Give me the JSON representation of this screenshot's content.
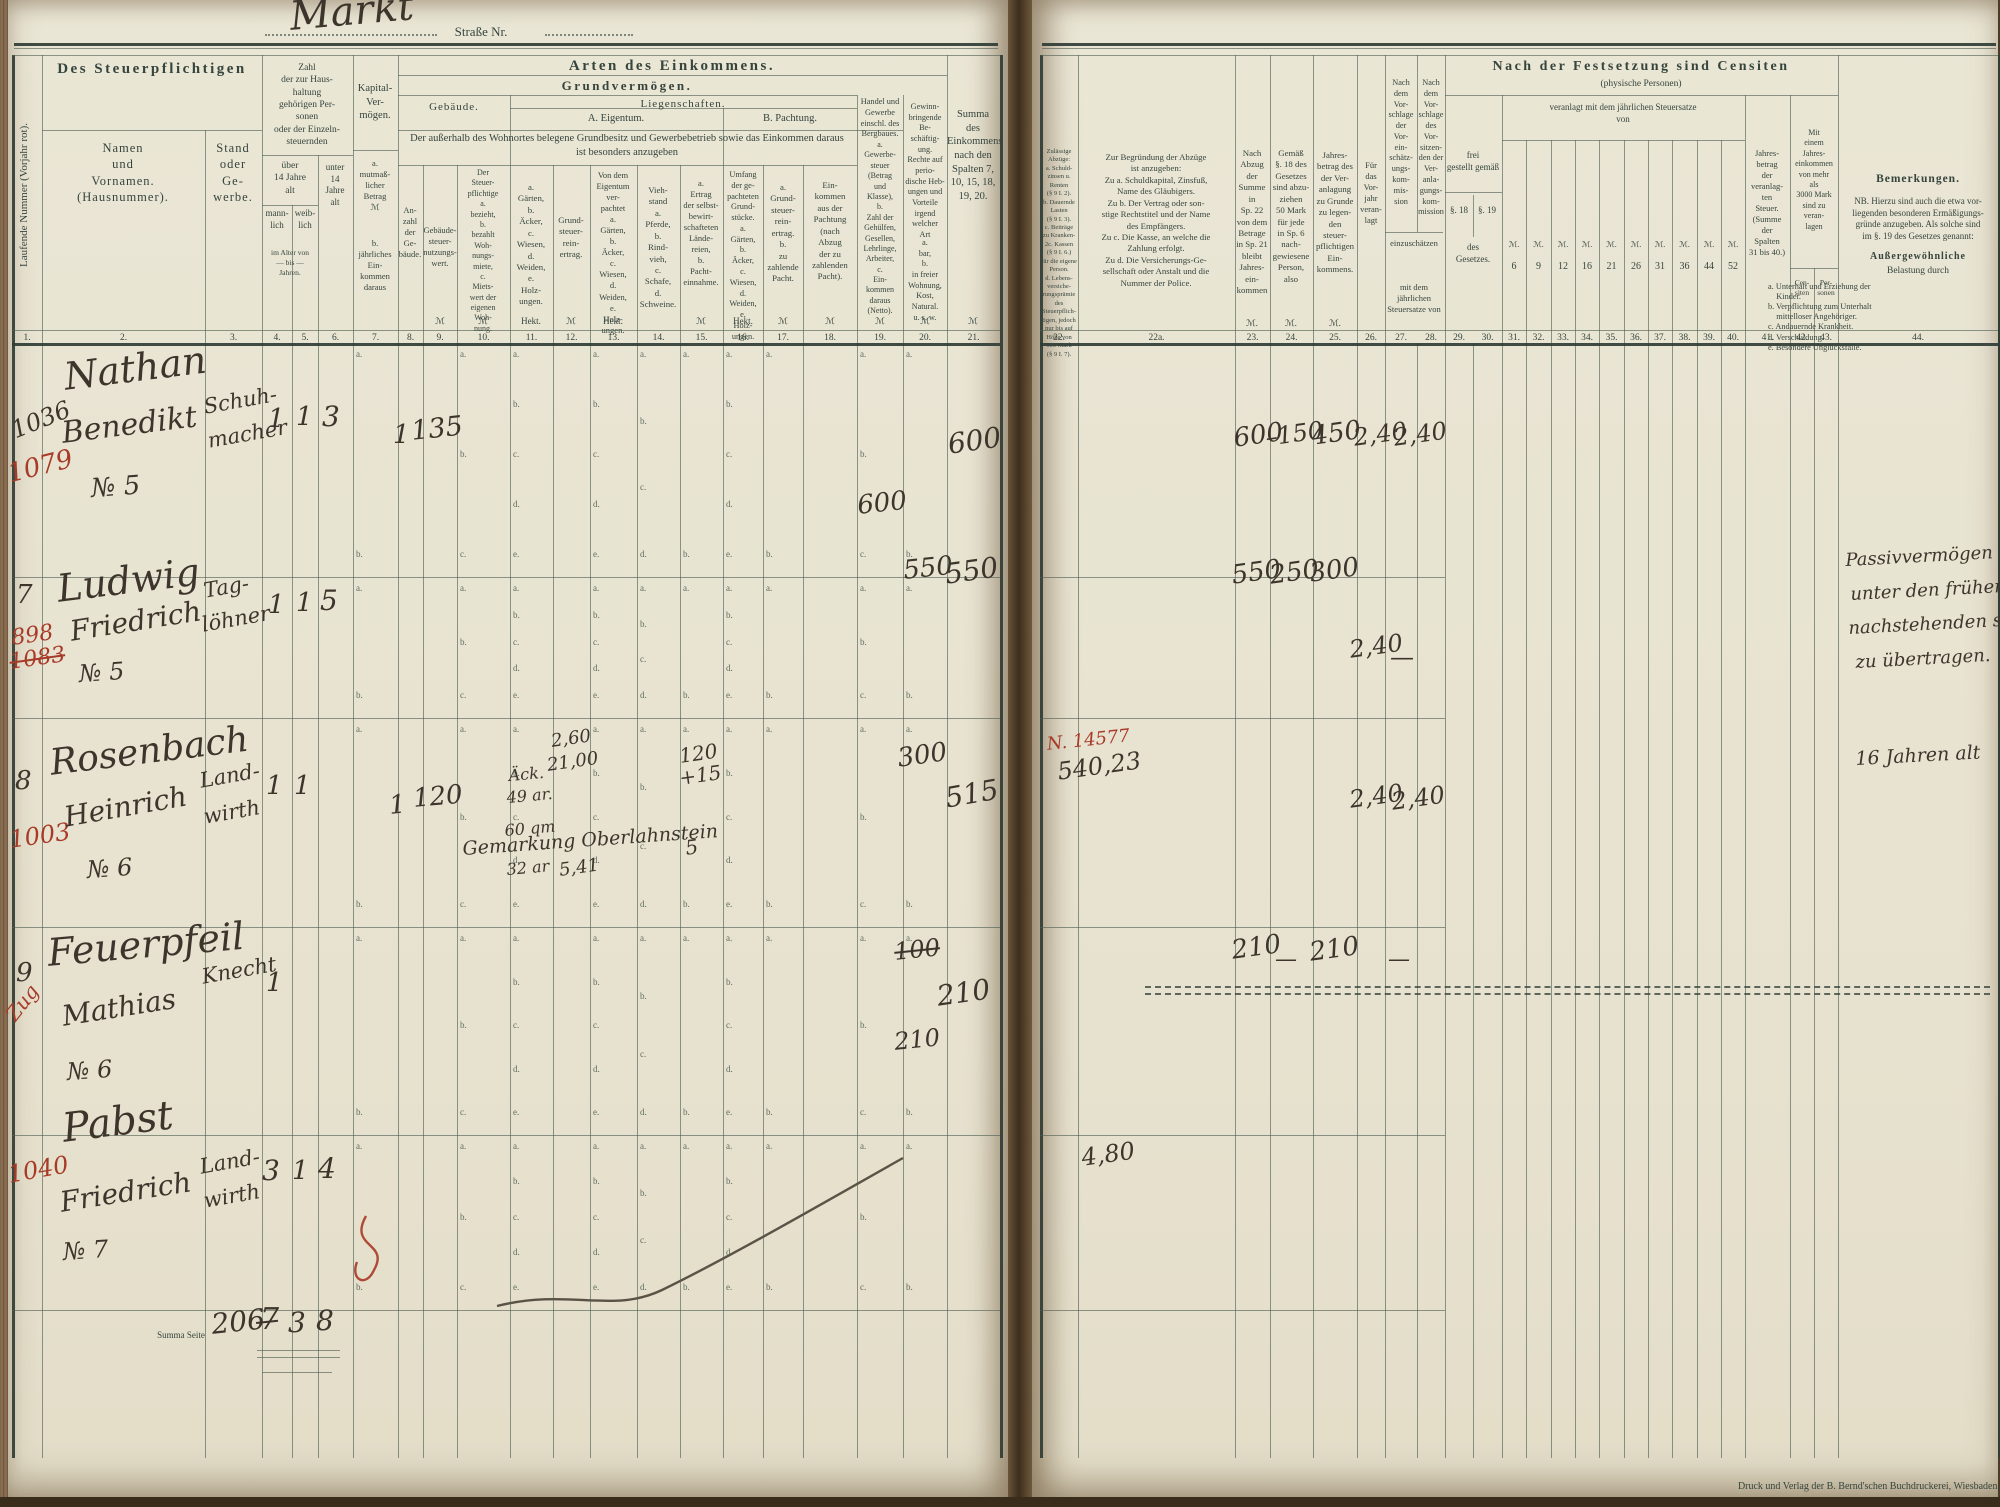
{
  "title": {
    "street_hw": "Markt",
    "street_label": "Straße Nr."
  },
  "colors": {
    "paper": "#e9e5d3",
    "ink_print": "#35443c",
    "ink_hand": "#3d352c",
    "ink_red": "#a83a28",
    "line": "#4b5b52"
  },
  "lh": {
    "c1v": "Laufende Nummer (Vorjahr rot).",
    "dsp": "Des Steuerpflichtigen",
    "namen": "Namen\nund\nVornamen.\n(Hausnummer).",
    "stand": "Stand\noder\nGe-\nwerbe.",
    "zahl": "Zahl\nder zur Haus-\nhaltung\ngehörigen Per-\nsonen\noder der Einzeln-\nsteuernden",
    "ueber14": "über\n14 Jahre\nalt",
    "mann": "mann-\nlich",
    "weib": "weib-\nlich",
    "unter14": "unter\n14\nJahre\nalt",
    "alter": "im Alter von\n— bis —\nJahren.",
    "kapital": "Kapital-\nVer-\nmögen.",
    "kap_a": "a.\nmutmaß-\nlicher\nBetrag\nℳ",
    "kap_b": "b.\njährliches\nEin-\nkommen\ndaraus",
    "arten": "Arten des Einkommens.",
    "grund": "Grundvermögen.",
    "gebaeude": "Gebäude.",
    "liegen": "Liegenschaften.",
    "eigentum": "A. Eigentum.",
    "pachtung": "B. Pachtung.",
    "note": "Der außerhalb des Wohnortes belegene Grundbesitz und Gewerbebetrieb sowie das Einkommen daraus\nist besonders anzugeben",
    "c8": "An-\nzahl\nder\nGe-\nbäude.",
    "c9": "Gebäude-\nsteuer-\nnutzungs-\nwert.",
    "c10": "Der\nSteuer-\npflichtige\na.\nbezieht,\nb.\nbezahlt\nWoh-\nnungs-\nmiete,\nc.\nMiets-\nwert der\neigenen\nWoh-\nnung.",
    "c11": "a.\nGärten,\nb.\nÄcker,\nc.\nWiesen,\nd.\nWeiden,\ne.\nHolz-\nungen.",
    "c12": "Grund-\nsteuer-\nrein-\nertrag.",
    "c13": "Von dem\nEigentum\nver-\npachtet\na.\nGärten,\nb.\nÄcker,\nc.\nWiesen,\nd.\nWeiden,\ne.\nHolz-\nungen.",
    "c14": "Vieh-\nstand\na.\nPferde,\nb.\nRind-\nvieh,\nc.\nSchafe,\nd.\nSchweine.",
    "c15": "a.\nErtrag\nder selbst-\nbewirt-\nschafteten\nLände-\nreien,\nb.\nPacht-\neinnahme.",
    "c16": "Umfang\nder ge-\npachteten\nGrund-\nstücke.\na.\nGärten,\nb.\nÄcker,\nc.\nWiesen,\nd.\nWeiden,\ne.\nHolz-\nungen.",
    "c17": "a.\nGrund-\nsteuer-\nrein-\nertrag.\nb.\nzu\nzahlende\nPacht.",
    "c18": "Ein-\nkommen\naus der\nPachtung\n(nach\nAbzug\nder zu\nzahlenden\nPacht).",
    "handel": "Handel und\nGewerbe\neinschl. des\nBergbaues.",
    "c19": "a.\nGewerbe-\nsteuer\n(Betrag\nund\nKlasse),\nb.\nZahl der\nGehülfen,\nGesellen,\nLehrlinge,\nArbeiter,\nc.\nEin-\nkommen\ndaraus\n(Netto).",
    "c20top": "Gewinn-\nbringende\nBe-\nschäftig-\nung.\nRechte auf\nperio-\ndische Heb-\nungen und\nVorteile\nirgend\nwelcher\nArt",
    "c20bot": "a.\nbar,\nb.\nin freier\nWohnung,\nKost,\nNatural.\nu. s. w.",
    "c21": "Summa\ndes\nEinkommens\nnach den\nSpalten 7,\n10, 15, 18,\n19, 20.",
    "nums": [
      "1.",
      "2.",
      "3.",
      "4.",
      "5.",
      "6.",
      "7.",
      "8.",
      "9.",
      "10.",
      "11.",
      "12.",
      "13.",
      "14.",
      "15.",
      "16.",
      "17.",
      "18.",
      "19.",
      "20.",
      "21."
    ],
    "unit_m": "ℳ",
    "unit_h": "Hekt."
  },
  "rh": {
    "c22": "Zulässige\nAbzüge:\na. Schuld-\nzinsen u.\nRenten\n(§ 9 I. 2).\nb. Dauernde\nLasten\n(§ 9 I. 3).\nc. Beiträge\nzu Kranken-\n2c. Kassen\n(§ 9 I. 6.)\nfür die eigene\nPerson.\nd. Lebens-\nversiche-\nrungsprämie\ndes\nSteuerpflich-\ntigen, jedoch\nnur bis auf\nHöhe von\n600 Mark\n(§ 9 I. 7).",
    "c22a": "Zur Begründung der Abzüge\nist anzugeben:\nZu a. Schuldkapital, Zinsfuß,\nName des Gläubigers.\nZu b. Der Vertrag oder son-\nstige Rechtstitel und der Name\ndes Empfängers.\nZu c. Die Kasse, an welche die\nZahlung erfolgt.\nZu d. Die Versicherungs-Ge-\nsellschaft oder Anstalt und die\nNummer der Police.",
    "c23": "Nach\nAbzug der\nSumme\nin\nSp. 22\nvon dem\nBetrage\nin Sp. 21\nbleibt\nJahres-\nein-\nkommen",
    "c24": "Gemäß\n§. 18 des\nGesetzes\nsind abzu-\nziehen\n50 Mark\nfür jede\nin Sp. 6\nnach-\ngewiesene\nPerson,\nalso",
    "c25": "Jahres-\nbetrag des\nder Ver-\nanlagung\nzu Grunde\nzu legen-\nden\nsteuer-\npflichtigen\nEin-\nkommens.",
    "c26": "Für\ndas\nVor-\njahr\nveran-\nlagt",
    "c27": "Nach\ndem\nVor-\nschlage\nder\nVor-\nein-\nschätz-\nungs-\nkom-\nmis-\nsion",
    "c28": "Nach\ndem\nVor-\nschlage\ndes\nVor-\nsitzen-\nden der\nVer-\nanla-\ngungs-\nkom-\nmission",
    "einzu": "einzuschätzen",
    "mitdem": "mit dem jährlichen\nSteuersatze von",
    "fest": "Nach der Festsetzung sind Censiten",
    "fest2": "(physische Personen)",
    "frei": "frei\ngestellt gemäß",
    "p18": "§. 18",
    "p19": "§. 19",
    "gesetz": "des\nGesetzes.",
    "veranlagt": "veranlagt mit dem jährlichen Steuersatze\nvon",
    "msign": "ℳ.",
    "rates": [
      "6",
      "9",
      "12",
      "16",
      "21",
      "26",
      "31",
      "36",
      "44",
      "52"
    ],
    "c41": "Jahres-\nbetrag\nder\nveranlag-\nten\nSteuer.\n(Summe\nder\nSpalten\n31 bis 40.)",
    "c42g": "Mit\neinem\nJahres-\neinkommen\nvon mehr\nals\n3000 Mark\nsind zu\nveran-\nlagen",
    "cen": "Cen-\nsiten",
    "per": "Per-\nsonen",
    "bem": "Bemerkungen.",
    "bem_nb": "NB. Hierzu sind auch die etwa vor-\nliegenden besonderen Ermäßigungs-\ngründe anzugeben. Als solche sind\nim §. 19 des Gesetzes genannt:",
    "bem_t": "Außergewöhnliche",
    "bem_t2": "Belastung durch",
    "bem_list": "a. Unterhalt und Erziehung der\n    Kinder.\nb. Verpflichtung zum Unterhalt\n    mittelloser Angehöriger.\nc. Andauernde Krankheit.\nd. Verschuldung.\ne. Besondere Unglücksfälle.",
    "nums": [
      "22.",
      "22a.",
      "23.",
      "24.",
      "25.",
      "26.",
      "27.",
      "28.",
      "29.",
      "30.",
      "31.",
      "32.",
      "33.",
      "34.",
      "35.",
      "36.",
      "37.",
      "38.",
      "39.",
      "40.",
      "41.",
      "42.",
      "43.",
      "44."
    ]
  },
  "cell_letters": {
    "7": [
      "a.",
      "b."
    ],
    "10": [
      "a.",
      "b.",
      "c."
    ],
    "11": [
      "a.",
      "b.",
      "c.",
      "d.",
      "e."
    ],
    "13": [
      "a.",
      "b.",
      "c.",
      "d.",
      "e."
    ],
    "14": [
      "a.",
      "b.",
      "c.",
      "d."
    ],
    "15": [
      "a.",
      "b."
    ],
    "16": [
      "a.",
      "b.",
      "c.",
      "d.",
      "e."
    ],
    "17": [
      "a.",
      "b."
    ],
    "19": [
      "a.",
      "b.",
      "c."
    ],
    "20": [
      "a.",
      "b."
    ]
  },
  "rows": [
    {
      "nr": "1036",
      "nr_red": "1079",
      "name1": "Nathan",
      "name2": "Benedikt",
      "haus": "№ 5",
      "stand1": "Schuh-",
      "stand2": "macher",
      "m": "1",
      "w": "1",
      "u14": "3",
      "geb": "1",
      "wert": "135",
      "c19": "600",
      "summa": "600",
      "r23": "600",
      "r24": "–150",
      "r25": "450",
      "r26": "2,40",
      "r27": "2,40"
    },
    {
      "nr": "7",
      "nr_red": "898",
      "nr_red_struck": "1083",
      "name1": "Ludwig",
      "name2": "Friedrich",
      "haus": "№ 5",
      "stand1": "Tag-",
      "stand2": "löhner",
      "m": "1",
      "w": "1",
      "u14": "5",
      "c20": "550",
      "summa": "550",
      "r23": "550",
      "r24": "250",
      "r25": "300",
      "r26": "2,40",
      "r27": "—"
    },
    {
      "nr": "8",
      "nr_red": "1003",
      "name1": "Rosenbach",
      "name2": "Heinrich",
      "haus": "№ 6",
      "stand1": "Land-",
      "stand2": "wirth",
      "m": "1",
      "w": "1",
      "geb": "1",
      "wert": "120",
      "c11b1": "Äck.",
      "c11b2": "49 ar.",
      "c11c": "60 qm",
      "c11d": "32 ar",
      "c12a": "2,60",
      "c12b": "21,00",
      "c12c": "5,41",
      "gemarkung": "Gemarkung Oberlahnstein",
      "c15a": "120",
      "c15b": "+15",
      "c15c": "5",
      "c20": "300",
      "summa": "515",
      "police": "N. 14577",
      "r22": "540,23",
      "r26": "2,40",
      "r27": "2,40",
      "bem": [
        "Passivvermögen u.",
        "unter den früheren",
        "nachstehenden sind",
        "zu übertragen."
      ]
    },
    {
      "nr": "9",
      "zug_red": "Zug",
      "name1": "Feuerpfeil",
      "name2": "Mathias",
      "haus": "№ 6",
      "stand1": "Knecht",
      "m": "1",
      "c20a": "100",
      "c20b": "210",
      "summa": "210",
      "r23": "210",
      "r24": "—",
      "r25": "210",
      "r27": "—",
      "bem": [
        "16 Jahren alt"
      ]
    },
    {
      "nr_red": "1040",
      "name1": "Pabst",
      "name2": "Friedrich",
      "haus": "№ 7",
      "stand1": "Land-",
      "stand2": "wirth",
      "m": "3",
      "w": "1",
      "u14": "4"
    }
  ],
  "summa_row": {
    "label": "Summa Seite",
    "v206": "206",
    "vm": "7",
    "vw": "3",
    "vu": "8"
  },
  "extra": {
    "sum": "4,80"
  },
  "footer": {
    "imprint": "Druck und Verlag der B. Bernd'schen Buchdruckerei, Wiesbaden."
  }
}
